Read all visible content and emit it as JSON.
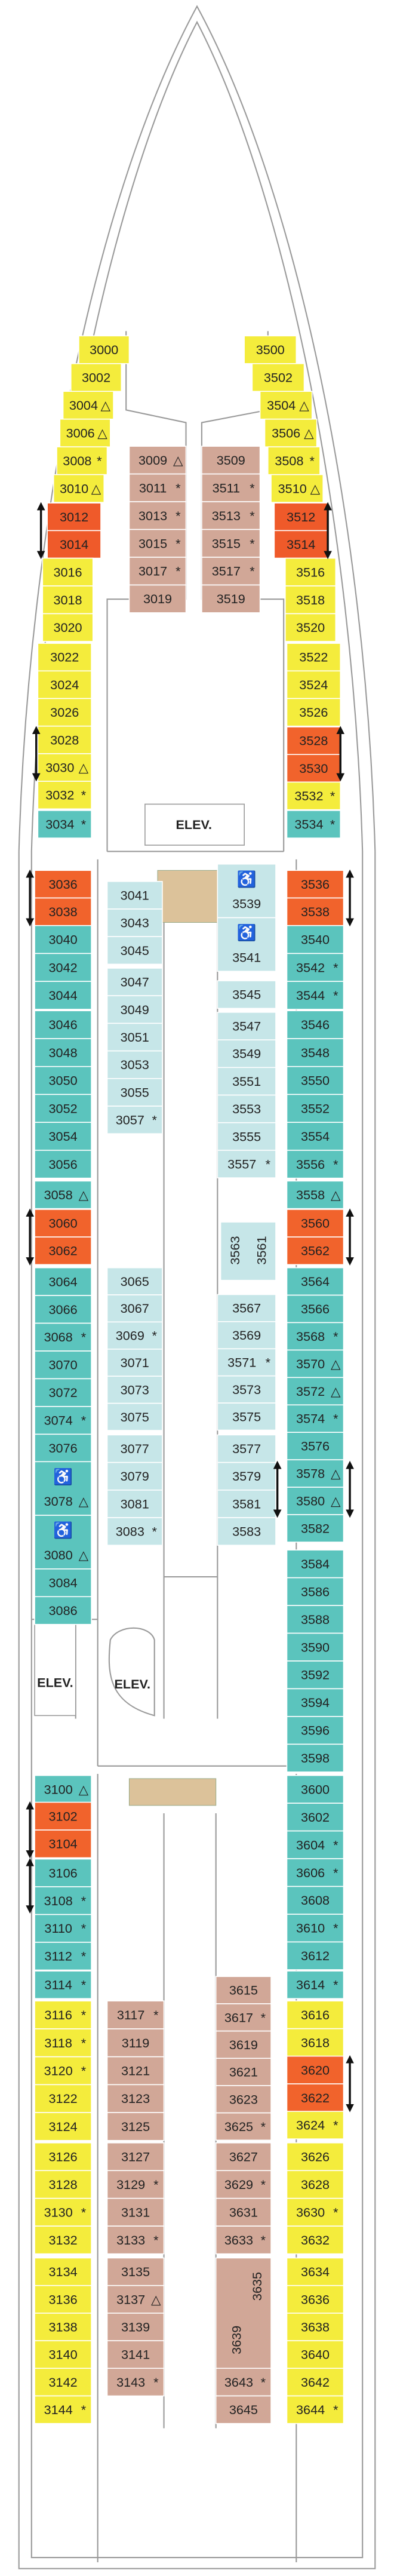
{
  "blocks": [
    {
      "color": "#f4ec3c",
      "cabins": [
        {
          "number": "3000"
        },
        {
          "number": "3002"
        },
        {
          "number": "3004",
          "mark": "△"
        },
        {
          "number": "3006",
          "mark": "△"
        },
        {
          "number": "3008",
          "mark": "*"
        },
        {
          "number": "3010",
          "mark": "△"
        }
      ]
    },
    {
      "color": "#ef5a2a",
      "cabins": [
        {
          "number": "3012"
        },
        {
          "number": "3014"
        }
      ]
    },
    {
      "color": "#f4ec3c",
      "cabins": [
        {
          "number": "3016"
        },
        {
          "number": "3018"
        },
        {
          "number": "3020"
        }
      ]
    },
    {
      "color": "#f4ec3c",
      "cabins": [
        {
          "number": "3022"
        },
        {
          "number": "3024"
        },
        {
          "number": "3026"
        },
        {
          "number": "3028"
        },
        {
          "number": "3030",
          "mark": "△"
        },
        {
          "number": "3032",
          "mark": "*"
        }
      ]
    },
    {
      "color": "#5bc4bd",
      "cabins": [
        {
          "number": "3034",
          "mark": "*"
        }
      ]
    },
    {
      "color": "#f4ec3c",
      "cabins": [
        {
          "number": "3500"
        },
        {
          "number": "3502"
        },
        {
          "number": "3504",
          "mark": "△"
        },
        {
          "number": "3506",
          "mark": "△"
        },
        {
          "number": "3508",
          "mark": "*"
        },
        {
          "number": "3510",
          "mark": "△"
        }
      ]
    },
    {
      "color": "#ef5a2a",
      "cabins": [
        {
          "number": "3512"
        },
        {
          "number": "3514"
        }
      ]
    },
    {
      "color": "#f4ec3c",
      "cabins": [
        {
          "number": "3516"
        },
        {
          "number": "3518"
        },
        {
          "number": "3520"
        }
      ]
    },
    {
      "color": "#f4ec3c",
      "cabins": [
        {
          "number": "3522"
        },
        {
          "number": "3524"
        },
        {
          "number": "3526"
        }
      ]
    },
    {
      "color": "#f1632c",
      "cabins": [
        {
          "number": "3528"
        },
        {
          "number": "3530"
        }
      ]
    },
    {
      "color": "#f4ec3c",
      "cabins": [
        {
          "number": "3532",
          "mark": "*"
        }
      ]
    },
    {
      "color": "#5bc4bd",
      "cabins": [
        {
          "number": "3534",
          "mark": "*"
        }
      ]
    },
    {
      "color": "#d1a797",
      "cabins": [
        {
          "number": "3009",
          "mark": "△"
        },
        {
          "number": "3011",
          "mark": "*"
        },
        {
          "number": "3013",
          "mark": "*"
        },
        {
          "number": "3015",
          "mark": "*"
        },
        {
          "number": "3017",
          "mark": "*"
        },
        {
          "number": "3019"
        }
      ]
    },
    {
      "color": "#d1a797",
      "cabins": [
        {
          "number": "3509"
        },
        {
          "number": "3511",
          "mark": "*"
        },
        {
          "number": "3513",
          "mark": "*"
        },
        {
          "number": "3515",
          "mark": "*"
        },
        {
          "number": "3517",
          "mark": "*"
        },
        {
          "number": "3519"
        }
      ]
    },
    {
      "color": "#f1632c",
      "cabins": [
        {
          "number": "3036"
        },
        {
          "number": "3038"
        }
      ]
    },
    {
      "color": "#5bc4bd",
      "cabins": [
        {
          "number": "3040"
        },
        {
          "number": "3042"
        },
        {
          "number": "3044"
        }
      ]
    },
    {
      "color": "#5bc4bd",
      "cabins": [
        {
          "number": "3046"
        },
        {
          "number": "3048"
        },
        {
          "number": "3050"
        },
        {
          "number": "3052"
        },
        {
          "number": "3054"
        },
        {
          "number": "3056"
        }
      ]
    },
    {
      "color": "#5bc4bd",
      "cabins": [
        {
          "number": "3058",
          "mark": "△"
        }
      ]
    },
    {
      "color": "#f1632c",
      "cabins": [
        {
          "number": "3060"
        },
        {
          "number": "3062"
        }
      ]
    },
    {
      "color": "#5bc4bd",
      "cabins": [
        {
          "number": "3064"
        },
        {
          "number": "3066"
        },
        {
          "number": "3068",
          "mark": "*"
        },
        {
          "number": "3070"
        },
        {
          "number": "3072"
        },
        {
          "number": "3074",
          "mark": "*"
        },
        {
          "number": "3076"
        }
      ]
    },
    {
      "color": "#5bc4bd",
      "cabins": [
        {
          "number": "3078",
          "mark": "△",
          "icon": "♿"
        },
        {
          "number": "3080",
          "mark": "△",
          "icon": "♿"
        }
      ]
    },
    {
      "color": "#5bc4bd",
      "cabins": [
        {
          "number": "3084"
        },
        {
          "number": "3086"
        }
      ]
    },
    {
      "color": "#f1632c",
      "cabins": [
        {
          "number": "3536"
        },
        {
          "number": "3538"
        }
      ]
    },
    {
      "color": "#5bc4bd",
      "cabins": [
        {
          "number": "3540"
        },
        {
          "number": "3542",
          "mark": "*"
        },
        {
          "number": "3544",
          "mark": "*"
        }
      ]
    },
    {
      "color": "#5bc4bd",
      "cabins": [
        {
          "number": "3546"
        },
        {
          "number": "3548"
        },
        {
          "number": "3550"
        },
        {
          "number": "3552"
        },
        {
          "number": "3554"
        },
        {
          "number": "3556",
          "mark": "*"
        }
      ]
    },
    {
      "color": "#5bc4bd",
      "cabins": [
        {
          "number": "3558",
          "mark": "△"
        }
      ]
    },
    {
      "color": "#f1632c",
      "cabins": [
        {
          "number": "3560"
        },
        {
          "number": "3562"
        }
      ]
    },
    {
      "color": "#5bc4bd",
      "cabins": [
        {
          "number": "3564"
        },
        {
          "number": "3566"
        },
        {
          "number": "3568",
          "mark": "*"
        },
        {
          "number": "3570",
          "mark": "△"
        },
        {
          "number": "3572",
          "mark": "△"
        },
        {
          "number": "3574",
          "mark": "*"
        },
        {
          "number": "3576"
        },
        {
          "number": "3578",
          "mark": "△"
        },
        {
          "number": "3580",
          "mark": "△"
        },
        {
          "number": "3582"
        }
      ]
    },
    {
      "color": "#5bc4bd",
      "cabins": [
        {
          "number": "3584"
        },
        {
          "number": "3586"
        },
        {
          "number": "3588"
        },
        {
          "number": "3590"
        },
        {
          "number": "3592"
        },
        {
          "number": "3594"
        },
        {
          "number": "3596"
        },
        {
          "number": "3598"
        }
      ]
    },
    {
      "color": "#c6e6e8",
      "cabins": [
        {
          "number": "3041"
        },
        {
          "number": "3043"
        },
        {
          "number": "3045"
        }
      ]
    },
    {
      "color": "#c6e6e8",
      "cabins": [
        {
          "number": "3047"
        },
        {
          "number": "3049"
        },
        {
          "number": "3051"
        },
        {
          "number": "3053"
        },
        {
          "number": "3055"
        },
        {
          "number": "3057",
          "mark": "*"
        }
      ]
    },
    {
      "color": "#c6e6e8",
      "cabins": [
        {
          "number": "3065"
        },
        {
          "number": "3067"
        },
        {
          "number": "3069",
          "mark": "*"
        },
        {
          "number": "3071"
        },
        {
          "number": "3073"
        },
        {
          "number": "3075"
        }
      ]
    },
    {
      "color": "#c6e6e8",
      "cabins": [
        {
          "number": "3077"
        },
        {
          "number": "3079"
        },
        {
          "number": "3081"
        },
        {
          "number": "3083",
          "mark": "*"
        }
      ]
    },
    {
      "color": "#c6e6e8",
      "cabins": [
        {
          "number": "3539",
          "icon": "♿"
        },
        {
          "number": "3541",
          "icon": "♿"
        }
      ]
    },
    {
      "color": "#c6e6e8",
      "cabins": [
        {
          "number": "3545"
        }
      ]
    },
    {
      "color": "#c6e6e8",
      "cabins": [
        {
          "number": "3547"
        },
        {
          "number": "3549"
        },
        {
          "number": "3551"
        },
        {
          "number": "3553"
        },
        {
          "number": "3555"
        },
        {
          "number": "3557",
          "mark": "*"
        }
      ]
    },
    {
      "color": "#c6e6e8",
      "cabins": [
        {
          "number": "3563"
        },
        {
          "number": "3561"
        }
      ]
    },
    {
      "color": "#c6e6e8",
      "cabins": [
        {
          "number": "3567"
        },
        {
          "number": "3569"
        },
        {
          "number": "3571",
          "mark": "*"
        },
        {
          "number": "3573"
        },
        {
          "number": "3575"
        }
      ]
    },
    {
      "color": "#c6e6e8",
      "cabins": [
        {
          "number": "3577"
        },
        {
          "number": "3579"
        },
        {
          "number": "3581"
        },
        {
          "number": "3583"
        }
      ]
    },
    {
      "color": "#5bc4bd",
      "cabins": [
        {
          "number": "3100",
          "mark": "△"
        }
      ]
    },
    {
      "color": "#f1632c",
      "cabins": [
        {
          "number": "3102"
        },
        {
          "number": "3104"
        }
      ]
    },
    {
      "color": "#5bc4bd",
      "cabins": [
        {
          "number": "3106"
        },
        {
          "number": "3108",
          "mark": "*"
        },
        {
          "number": "3110",
          "mark": "*"
        },
        {
          "number": "3112",
          "mark": "*"
        }
      ]
    },
    {
      "color": "#5bc4bd",
      "cabins": [
        {
          "number": "3114",
          "mark": "*"
        }
      ]
    },
    {
      "color": "#f4ec3c",
      "cabins": [
        {
          "number": "3116",
          "mark": "*"
        },
        {
          "number": "3118",
          "mark": "*"
        },
        {
          "number": "3120",
          "mark": "*"
        },
        {
          "number": "3122"
        },
        {
          "number": "3124"
        }
      ]
    },
    {
      "color": "#f4ec3c",
      "cabins": [
        {
          "number": "3126"
        },
        {
          "number": "3128"
        },
        {
          "number": "3130",
          "mark": "*"
        },
        {
          "number": "3132"
        }
      ]
    },
    {
      "color": "#f4ec3c",
      "cabins": [
        {
          "number": "3134"
        },
        {
          "number": "3136"
        },
        {
          "number": "3138"
        },
        {
          "number": "3140"
        },
        {
          "number": "3142"
        },
        {
          "number": "3144",
          "mark": "*"
        }
      ]
    },
    {
      "color": "#5bc4bd",
      "cabins": [
        {
          "number": "3600"
        },
        {
          "number": "3602"
        },
        {
          "number": "3604",
          "mark": "*"
        },
        {
          "number": "3606",
          "mark": "*"
        },
        {
          "number": "3608"
        },
        {
          "number": "3610",
          "mark": "*"
        },
        {
          "number": "3612"
        }
      ]
    },
    {
      "color": "#5bc4bd",
      "cabins": [
        {
          "number": "3614",
          "mark": "*"
        }
      ]
    },
    {
      "color": "#f4ec3c",
      "cabins": [
        {
          "number": "3616"
        },
        {
          "number": "3618"
        }
      ]
    },
    {
      "color": "#f1632c",
      "cabins": [
        {
          "number": "3620"
        },
        {
          "number": "3622"
        }
      ]
    },
    {
      "color": "#f4ec3c",
      "cabins": [
        {
          "number": "3624",
          "mark": "*"
        }
      ]
    },
    {
      "color": "#f4ec3c",
      "cabins": [
        {
          "number": "3626"
        },
        {
          "number": "3628"
        },
        {
          "number": "3630",
          "mark": "*"
        },
        {
          "number": "3632"
        }
      ]
    },
    {
      "color": "#f4ec3c",
      "cabins": [
        {
          "number": "3634"
        },
        {
          "number": "3636"
        },
        {
          "number": "3638"
        },
        {
          "number": "3640"
        },
        {
          "number": "3642"
        },
        {
          "number": "3644",
          "mark": "*"
        }
      ]
    },
    {
      "color": "#d1a797",
      "cabins": [
        {
          "number": "3117",
          "mark": "*"
        },
        {
          "number": "3119"
        },
        {
          "number": "3121"
        },
        {
          "number": "3123"
        },
        {
          "number": "3125"
        }
      ]
    },
    {
      "color": "#d1a797",
      "cabins": [
        {
          "number": "3127"
        },
        {
          "number": "3129",
          "mark": "*"
        },
        {
          "number": "3131"
        },
        {
          "number": "3133",
          "mark": "*"
        }
      ]
    },
    {
      "color": "#d1a797",
      "cabins": [
        {
          "number": "3135"
        },
        {
          "number": "3137",
          "mark": "△"
        },
        {
          "number": "3139"
        },
        {
          "number": "3141"
        },
        {
          "number": "3143",
          "mark": "*"
        }
      ]
    },
    {
      "color": "#d1a797",
      "cabins": [
        {
          "number": "3615"
        },
        {
          "number": "3617",
          "mark": "*"
        },
        {
          "number": "3619"
        },
        {
          "number": "3621"
        },
        {
          "number": "3623"
        },
        {
          "number": "3625",
          "mark": "*"
        }
      ]
    },
    {
      "color": "#d1a797",
      "cabins": [
        {
          "number": "3627"
        },
        {
          "number": "3629",
          "mark": "*"
        },
        {
          "number": "3631"
        },
        {
          "number": "3633",
          "mark": "*"
        }
      ]
    },
    {
      "color": "#d1a797",
      "cabins": [
        {
          "number": "3635"
        },
        {
          "number": "3639"
        }
      ]
    },
    {
      "color": "#d1a797",
      "cabins": [
        {
          "number": "3643",
          "mark": "*"
        },
        {
          "number": "3645"
        }
      ]
    }
  ],
  "elevators": [
    "ELEV.",
    "ELEV.",
    "ELEV."
  ]
}
